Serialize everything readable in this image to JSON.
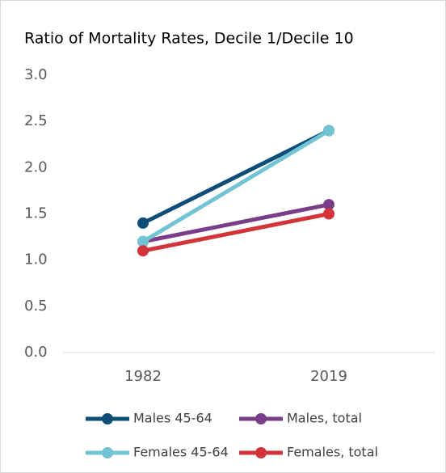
{
  "chart_data": {
    "type": "line",
    "title": "Ratio of Mortality Rates, Decile 1/Decile 10",
    "categories": [
      "1982",
      "2019"
    ],
    "series": [
      {
        "name": "Males 45-64",
        "color": "#0e4d78",
        "values": [
          1.4,
          2.4
        ]
      },
      {
        "name": "Males, total",
        "color": "#7a3d8a",
        "values": [
          1.2,
          1.6
        ]
      },
      {
        "name": "Females 45-64",
        "color": "#72c3d3",
        "values": [
          1.2,
          2.4
        ]
      },
      {
        "name": "Females, total",
        "color": "#d2343a",
        "values": [
          1.1,
          1.5
        ]
      }
    ],
    "ylim": [
      0,
      3
    ],
    "yticks": [
      {
        "value": 0,
        "label": "0.0"
      },
      0.5,
      {
        "value": 1,
        "label": "1.0"
      },
      1.5,
      {
        "value": 2,
        "label": "2.0"
      },
      2.5,
      {
        "value": 3,
        "label": "3.0"
      }
    ],
    "grid": false,
    "legend": "bottom"
  }
}
